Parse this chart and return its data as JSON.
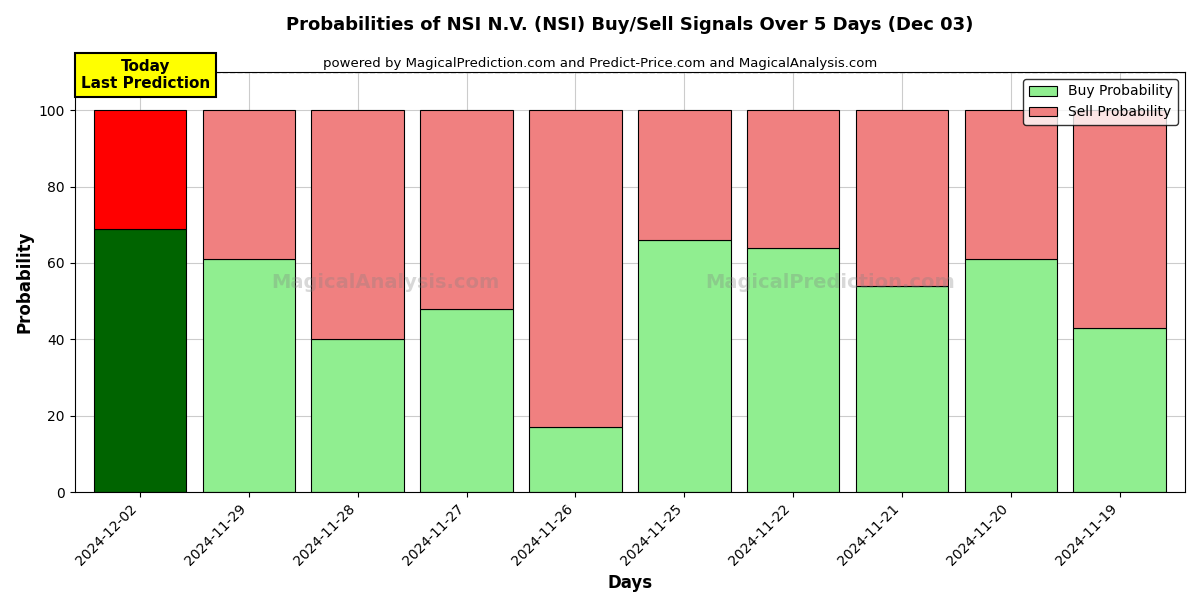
{
  "title": "Probabilities of NSI N.V. (NSI) Buy/Sell Signals Over 5 Days (Dec 03)",
  "subtitle": "powered by MagicalPrediction.com and Predict-Price.com and MagicalAnalysis.com",
  "xlabel": "Days",
  "ylabel": "Probability",
  "categories": [
    "2024-12-02",
    "2024-11-29",
    "2024-11-28",
    "2024-11-27",
    "2024-11-26",
    "2024-11-25",
    "2024-11-22",
    "2024-11-21",
    "2024-11-20",
    "2024-11-19"
  ],
  "buy_values": [
    69,
    61,
    40,
    48,
    17,
    66,
    64,
    54,
    61,
    43
  ],
  "sell_values": [
    31,
    39,
    60,
    52,
    83,
    34,
    36,
    46,
    39,
    57
  ],
  "buy_colors": [
    "#006400",
    "#90EE90",
    "#90EE90",
    "#90EE90",
    "#90EE90",
    "#90EE90",
    "#90EE90",
    "#90EE90",
    "#90EE90",
    "#90EE90"
  ],
  "sell_colors": [
    "#FF0000",
    "#F08080",
    "#F08080",
    "#F08080",
    "#F08080",
    "#F08080",
    "#F08080",
    "#F08080",
    "#F08080",
    "#F08080"
  ],
  "ylim": [
    0,
    110
  ],
  "yticks": [
    0,
    20,
    40,
    60,
    80,
    100
  ],
  "dashed_line_y": 110,
  "legend_buy_label": "Buy Probability",
  "legend_sell_label": "Sell Probability",
  "today_label_line1": "Today",
  "today_label_line2": "Last Prediction",
  "today_box_color": "#FFFF00",
  "watermark1": "MagicalAnalysis.com",
  "watermark2": "MagicalPrediction.com",
  "background_color": "#ffffff",
  "grid_color": "#cccccc",
  "bar_edge_color": "#000000",
  "bar_width": 0.85
}
